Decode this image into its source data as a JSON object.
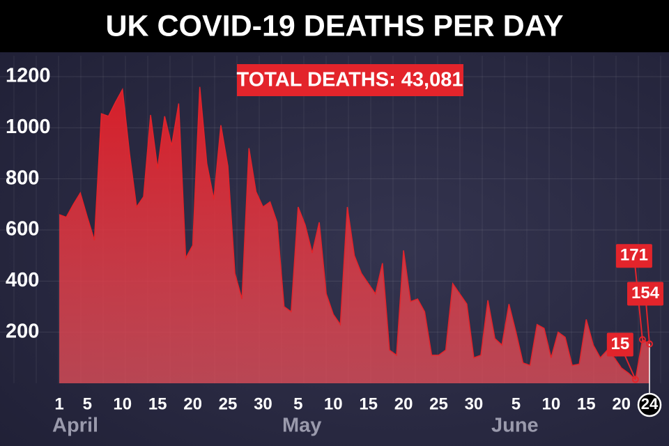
{
  "chart_data": {
    "type": "area",
    "title": "UK COVID-19 DEATHS PER DAY",
    "annotation": "TOTAL DEATHS: 43,081",
    "color": "#e3242b",
    "categories": [
      "1",
      null,
      null,
      null,
      "5",
      null,
      null,
      null,
      null,
      "10",
      null,
      null,
      null,
      null,
      "15",
      null,
      null,
      null,
      null,
      "20",
      null,
      null,
      null,
      null,
      "25",
      null,
      null,
      null,
      null,
      "30",
      null,
      null,
      null,
      null,
      "5",
      null,
      null,
      null,
      null,
      "10",
      null,
      null,
      null,
      null,
      "15",
      null,
      null,
      null,
      null,
      "20",
      null,
      null,
      null,
      null,
      "25",
      null,
      null,
      null,
      null,
      "30",
      null,
      null,
      null,
      null,
      null,
      "5",
      null,
      null,
      null,
      null,
      "10",
      null,
      null,
      null,
      null,
      "15",
      null,
      null,
      null,
      null,
      "20",
      null,
      null,
      null,
      "24"
    ],
    "months": [
      "April",
      "May",
      "June"
    ],
    "values": [
      660,
      650,
      700,
      745,
      650,
      560,
      1055,
      1045,
      1100,
      1150,
      900,
      690,
      730,
      1050,
      840,
      1045,
      930,
      1095,
      490,
      540,
      1160,
      860,
      720,
      1010,
      850,
      430,
      330,
      920,
      750,
      690,
      710,
      630,
      300,
      280,
      690,
      620,
      510,
      630,
      350,
      270,
      230,
      690,
      500,
      430,
      390,
      350,
      470,
      130,
      110,
      520,
      320,
      330,
      280,
      110,
      110,
      130,
      390,
      350,
      310,
      100,
      110,
      325,
      175,
      150,
      310,
      200,
      80,
      70,
      230,
      215,
      100,
      200,
      180,
      70,
      75,
      250,
      150,
      100,
      130,
      100,
      60,
      40,
      15,
      171,
      154
    ],
    "labeled_points": [
      82,
      83,
      84
    ],
    "ylim": [
      0,
      1300
    ],
    "yticks": [
      200,
      400,
      600,
      800,
      1000,
      1200
    ],
    "grid": true
  }
}
